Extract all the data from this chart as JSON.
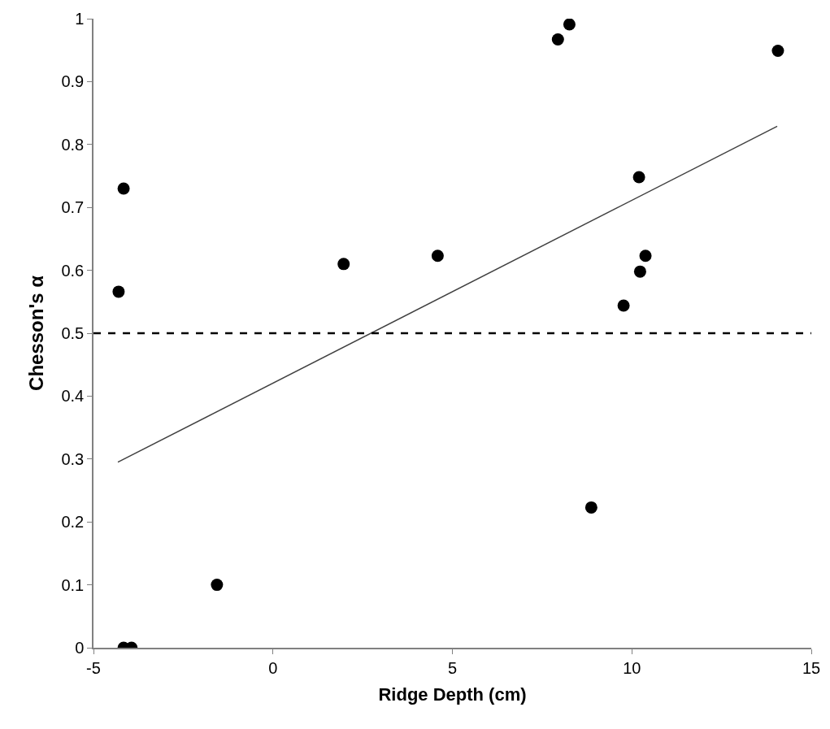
{
  "chart_data": {
    "type": "scatter",
    "xlabel": "Ridge Depth (cm)",
    "ylabel": "Chesson's α",
    "xlim": [
      -5,
      15
    ],
    "xticks": [
      -5,
      0,
      5,
      10,
      15
    ],
    "ylim": [
      0,
      1
    ],
    "yticks": [
      0,
      0.1,
      0.2,
      0.3,
      0.4,
      0.5,
      0.6,
      0.7,
      0.8,
      0.9,
      1
    ],
    "marker": "circle",
    "series": [
      {
        "color": "#000000",
        "x": [
          -4.3,
          -4.16,
          -4.16,
          -3.94,
          -1.56,
          1.97,
          4.59,
          7.94,
          8.26,
          8.87,
          9.77,
          10.2,
          10.23,
          10.38,
          14.07
        ],
        "values": [
          0.566,
          0.73,
          0,
          0,
          0.1,
          0.61,
          0.623,
          0.967,
          0.991,
          0.223,
          0.544,
          0.748,
          0.598,
          0.623,
          0.949
        ]
      },
      {
        "type": "line",
        "color": "#404040",
        "marker": "none",
        "line_style": "solid",
        "x": [
          -4.32,
          14.05
        ],
        "values": [
          0.295,
          0.829
        ]
      }
    ],
    "ref_lines": [
      {
        "axis": "y",
        "value": 0.5,
        "label": null,
        "color": "#000000",
        "line_style": "dashed"
      }
    ]
  }
}
